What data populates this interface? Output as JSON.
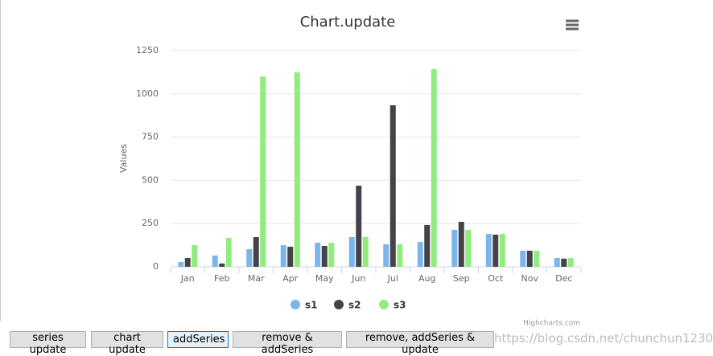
{
  "chart_data": {
    "type": "bar",
    "title": "Chart.update",
    "y_label": "Values",
    "categories": [
      "Jan",
      "Feb",
      "Mar",
      "Apr",
      "May",
      "Jun",
      "Jul",
      "Aug",
      "Sep",
      "Oct",
      "Nov",
      "Dec"
    ],
    "series": [
      {
        "name": "s1",
        "color": "#7cb5ec",
        "values": [
          28,
          65,
          102,
          125,
          139,
          172,
          130,
          144,
          214,
          190,
          93,
          51
        ]
      },
      {
        "name": "s2",
        "color": "#434348",
        "values": [
          51,
          19,
          172,
          116,
          121,
          469,
          934,
          242,
          260,
          186,
          93,
          47
        ]
      },
      {
        "name": "s3",
        "color": "#90ed7d",
        "values": [
          125,
          167,
          1101,
          1124,
          139,
          172,
          130,
          1143,
          214,
          190,
          93,
          51
        ]
      }
    ],
    "ylim": [
      0,
      1250
    ],
    "yticks": [
      0,
      250,
      500,
      750,
      1000,
      1250
    ],
    "grid": true,
    "credits": "Highcharts.com"
  },
  "buttons": [
    "series update",
    "chart update",
    "addSeries",
    "remove & addSeries",
    "remove, addSeries & update"
  ],
  "watermark": "https://blog.csdn.net/chunchun1230"
}
